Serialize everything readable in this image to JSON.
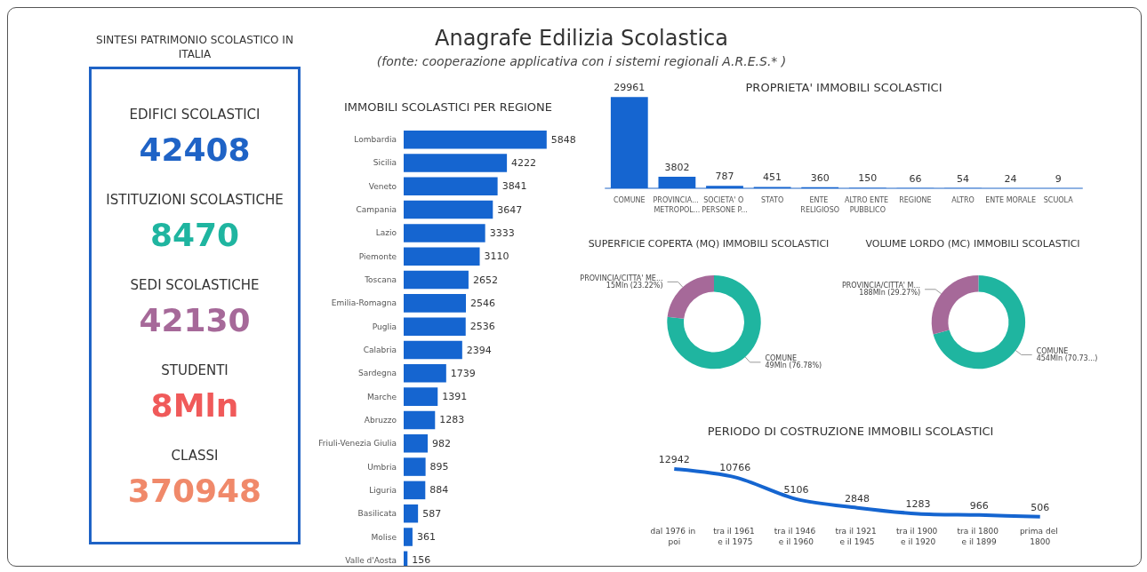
{
  "chart_data": [
    {
      "type": "other",
      "title": "Anagrafe Edilizia Scolastica",
      "subtitle": "(fonte: cooperazione applicativa con i sistemi regionali A.R.E.S.* )"
    },
    {
      "type": "other",
      "title": "SINTESI PATRIMONIO SCOLASTICO IN ITALIA",
      "annotations": [
        "EDIFICI SCOLASTICI",
        "42408",
        "ISTITUZIONI SCOLASTICHE",
        "8470",
        "SEDI SCOLASTICHE",
        "42130",
        "STUDENTI",
        "8Mln",
        "CLASSI",
        "370948"
      ],
      "colors": [
        "#333333",
        "#1f63c6",
        "#333333",
        "#1fb5a0",
        "#333333",
        "#a66999",
        "#333333",
        "#f05a5a",
        "#333333",
        "#f0896a"
      ]
    },
    {
      "type": "bar",
      "orientation": "horizontal",
      "title": "IMMOBILI SCOLASTICI PER REGIONE",
      "color": "#1565d0",
      "data_labels": true,
      "categories": [
        "Lombardia",
        "Sicilia",
        "Veneto",
        "Campania",
        "Lazio",
        "Piemonte",
        "Toscana",
        "Emilia-Romagna",
        "Puglia",
        "Calabria",
        "Sardegna",
        "Marche",
        "Abruzzo",
        "Friuli-Venezia Giulia",
        "Umbria",
        "Liguria",
        "Basilicata",
        "Molise",
        "Valle d'Aosta"
      ],
      "values": [
        5848,
        4222,
        3841,
        3647,
        3333,
        3110,
        2652,
        2546,
        2536,
        2394,
        1739,
        1391,
        1283,
        982,
        895,
        884,
        587,
        361,
        156
      ]
    },
    {
      "type": "bar",
      "title": "PROPRIETA' IMMOBILI SCOLASTICI",
      "color": "#1565d0",
      "data_labels": true,
      "categories": [
        "COMUNE",
        "PROVINCIA... METROPOL...",
        "SOCIETA' O PERSONE P...",
        "STATO",
        "ENTE RELIGIOSO",
        "ALTRO ENTE PUBBLICO",
        "REGIONE",
        "ALTRO",
        "ENTE MORALE",
        "SCUOLA"
      ],
      "values": [
        29961,
        3802,
        787,
        451,
        360,
        150,
        66,
        54,
        24,
        9
      ]
    },
    {
      "type": "donut",
      "title": "SUPERFICIE COPERTA (MQ) IMMOBILI SCOLASTICI",
      "categories": [
        "COMUNE",
        "PROVINCIA/CITTA' ME..."
      ],
      "values": [
        76.78,
        23.22
      ],
      "value_labels": [
        "49Mln (76.78%)",
        "15Mln (23.22%)"
      ],
      "colors": [
        "#1fb5a0",
        "#a66999"
      ]
    },
    {
      "type": "donut",
      "title": "VOLUME LORDO (MC) IMMOBILI SCOLASTICI",
      "categories": [
        "COMUNE",
        "PROVINCIA/CITTA' M..."
      ],
      "values": [
        70.73,
        29.27
      ],
      "value_labels": [
        "454Mln (70.73...)",
        "188Mln (29.27%)"
      ],
      "colors": [
        "#1fb5a0",
        "#a66999"
      ]
    },
    {
      "type": "line",
      "title": "PERIODO DI COSTRUZIONE IMMOBILI SCOLASTICI",
      "color": "#1565d0",
      "data_labels": true,
      "marker": "none",
      "categories": [
        "dal 1976 in poi",
        "tra il 1961 e il 1975",
        "tra il 1946 e il 1960",
        "tra il 1921 e il 1945",
        "tra il 1900 e il 1920",
        "tra il 1800 e il 1899",
        "prima del 1800"
      ],
      "values": [
        12942,
        10766,
        5106,
        2848,
        1283,
        966,
        506
      ]
    }
  ]
}
